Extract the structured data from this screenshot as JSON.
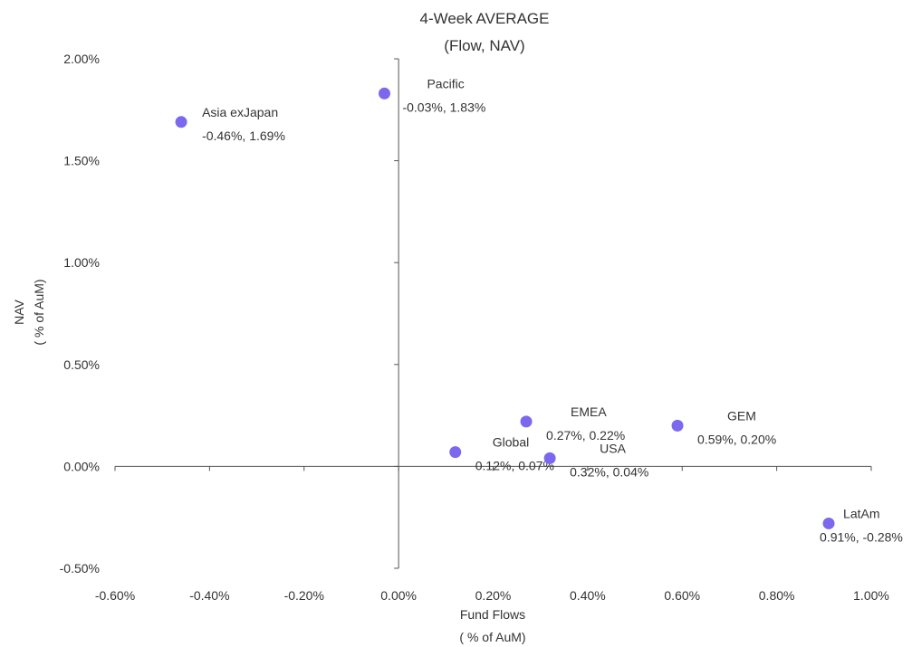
{
  "chart_data": {
    "type": "scatter",
    "title": "4-Week AVERAGE",
    "subtitle": "(Flow, NAV)",
    "xlabel": "Fund Flows",
    "xlabel_sub": "( % of AuM)",
    "ylabel": "NAV",
    "ylabel_sub": "( % of AuM)",
    "xlim": [
      -0.6,
      1.0
    ],
    "ylim": [
      -0.5,
      2.0
    ],
    "x_ticks": [
      -0.6,
      -0.4,
      -0.2,
      0.0,
      0.2,
      0.4,
      0.6,
      0.8,
      1.0
    ],
    "x_tick_labels": [
      "-0.60%",
      "-0.40%",
      "-0.20%",
      "0.00%",
      "0.20%",
      "0.40%",
      "0.60%",
      "0.80%",
      "1.00%"
    ],
    "y_ticks": [
      -0.5,
      0.0,
      0.5,
      1.0,
      1.5,
      2.0
    ],
    "y_tick_labels": [
      "-0.50%",
      "0.00%",
      "0.50%",
      "1.00%",
      "1.50%",
      "2.00%"
    ],
    "grid": false,
    "legend": "none",
    "marker_color": "#7b68ee",
    "points": [
      {
        "label": "Asia exJapan",
        "value_label": "-0.46%, 1.69%",
        "x": -0.46,
        "y": 1.69
      },
      {
        "label": "Pacific",
        "value_label": "-0.03%, 1.83%",
        "x": -0.03,
        "y": 1.83
      },
      {
        "label": "EMEA",
        "value_label": "0.27%, 0.22%",
        "x": 0.27,
        "y": 0.22
      },
      {
        "label": "Global",
        "value_label": "0.12%, 0.07%",
        "x": 0.12,
        "y": 0.07
      },
      {
        "label": "USA",
        "value_label": "0.32%, 0.04%",
        "x": 0.32,
        "y": 0.04
      },
      {
        "label": "GEM",
        "value_label": "0.59%, 0.20%",
        "x": 0.59,
        "y": 0.2
      },
      {
        "label": "LatAm",
        "value_label": "0.91%, -0.28%",
        "x": 0.91,
        "y": -0.28
      }
    ]
  }
}
